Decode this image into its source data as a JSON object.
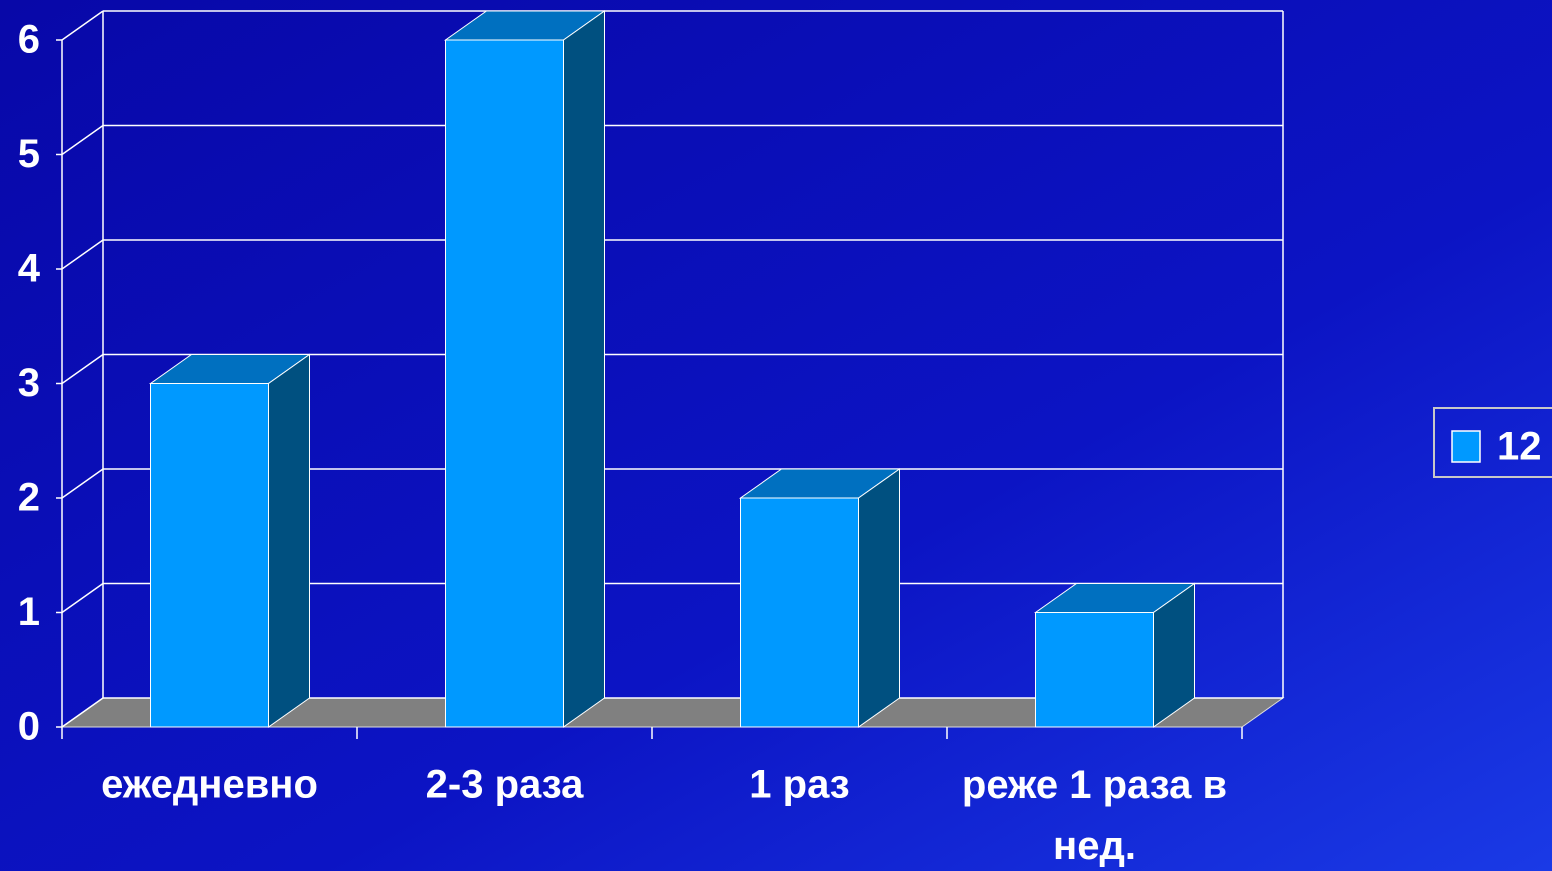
{
  "chart_data": {
    "type": "bar3d",
    "categories": [
      "ежедневно",
      "2-3 раза",
      "1 раз",
      "реже 1 раза в нед."
    ],
    "series": [
      {
        "name": "12",
        "color": "#0099ff",
        "values": [
          3,
          6,
          2,
          1
        ]
      }
    ],
    "ylim": [
      0,
      6
    ],
    "yticks": [
      0,
      1,
      2,
      3,
      4,
      5,
      6
    ],
    "grid": true,
    "legend": "right"
  }
}
